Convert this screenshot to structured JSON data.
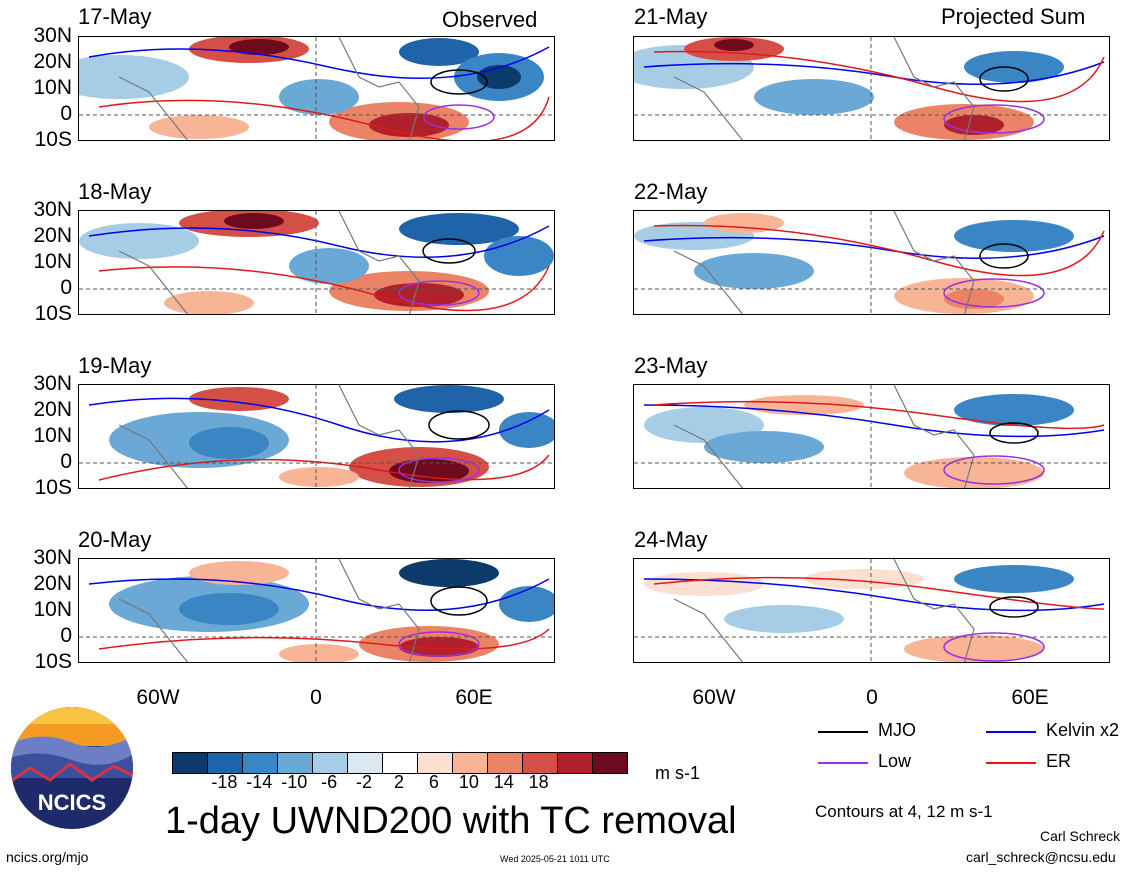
{
  "title": "1-day UWND200 with TC removal",
  "panels": {
    "left": {
      "header": "Observed",
      "dates": [
        "17-May",
        "18-May",
        "19-May",
        "20-May"
      ]
    },
    "right": {
      "header": "Projected Sum",
      "dates": [
        "21-May",
        "22-May",
        "23-May",
        "24-May"
      ]
    }
  },
  "lat_labels": [
    "30N",
    "20N",
    "10N",
    "0",
    "10S"
  ],
  "lon_labels": [
    "60W",
    "0",
    "60E"
  ],
  "colorbar": {
    "tick_labels": [
      "-18",
      "-14",
      "-10",
      "-6",
      "-2",
      "2",
      "6",
      "10",
      "14",
      "18"
    ],
    "units": "m s-1",
    "colors": [
      "#0b3a6b",
      "#1f64a8",
      "#3a86c5",
      "#6aa9d6",
      "#a6cce6",
      "#d9e8f3",
      "#ffffff",
      "#fbe0d2",
      "#f7b596",
      "#eb8466",
      "#d44f45",
      "#b0212b",
      "#6d0a1e"
    ]
  },
  "legend": {
    "items": [
      {
        "label": "MJO",
        "color": "#000000"
      },
      {
        "label": "Kelvin x2",
        "color": "#0000ee"
      },
      {
        "label": "Low",
        "color": "#9b30e0"
      },
      {
        "label": "ER",
        "color": "#e01a1a"
      }
    ],
    "contours_note": "Contours at 4, 12 m s-1"
  },
  "credits": {
    "logo_text": "NCICS",
    "site": "ncics.org/mjo",
    "timestamp": "Wed 2025-05-21 1011 UTC",
    "author": "Carl Schreck",
    "email": "carl_schreck@ncsu.edu"
  }
}
